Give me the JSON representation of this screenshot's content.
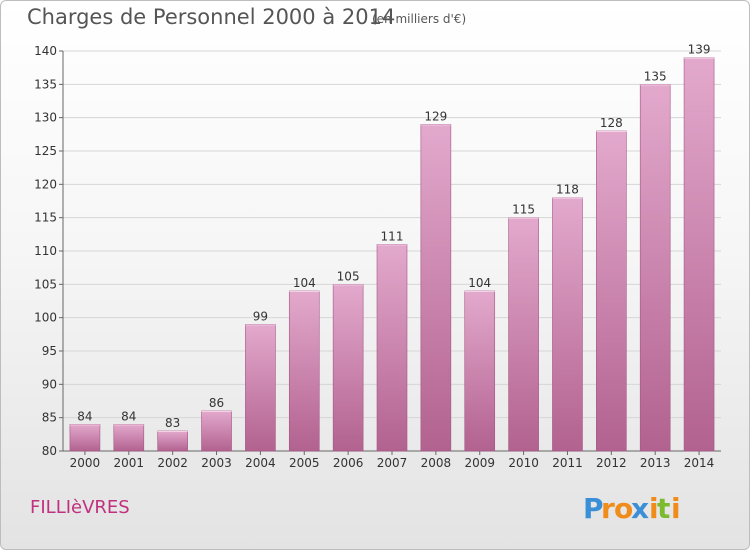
{
  "header": {
    "title": "Charges de Personnel 2000 à 2014",
    "subtitle": "(en milliers d'€)"
  },
  "footer": {
    "town": "FILLIèVRES",
    "logo_text": "Proxiti",
    "logo_letters": [
      "P",
      "r",
      "o",
      "x",
      "i",
      "t",
      "i"
    ]
  },
  "colors": {
    "bar_top": "#e3a9cd",
    "bar_bottom": "#b2628f",
    "bar_stroke": "#a55684",
    "town": "#c0307f",
    "logo": [
      "#3a8fd6",
      "#f08c1a",
      "#f08c1a",
      "#3a8fd6",
      "#f08c1a",
      "#7cba2e",
      "#f08c1a"
    ]
  },
  "chart_data": {
    "type": "bar",
    "title": "Charges de Personnel 2000 à 2014",
    "subtitle": "(en milliers d'€)",
    "categories": [
      "2000",
      "2001",
      "2002",
      "2003",
      "2004",
      "2005",
      "2006",
      "2007",
      "2008",
      "2009",
      "2010",
      "2011",
      "2012",
      "2013",
      "2014"
    ],
    "values": [
      84,
      84,
      83,
      86,
      99,
      104,
      105,
      111,
      129,
      104,
      115,
      118,
      128,
      135,
      139
    ],
    "ylim": [
      80,
      140
    ],
    "yticks": [
      80,
      85,
      90,
      95,
      100,
      105,
      110,
      115,
      120,
      125,
      130,
      135,
      140
    ],
    "xlabel": "",
    "ylabel": "",
    "grid": true,
    "legend": "none"
  }
}
